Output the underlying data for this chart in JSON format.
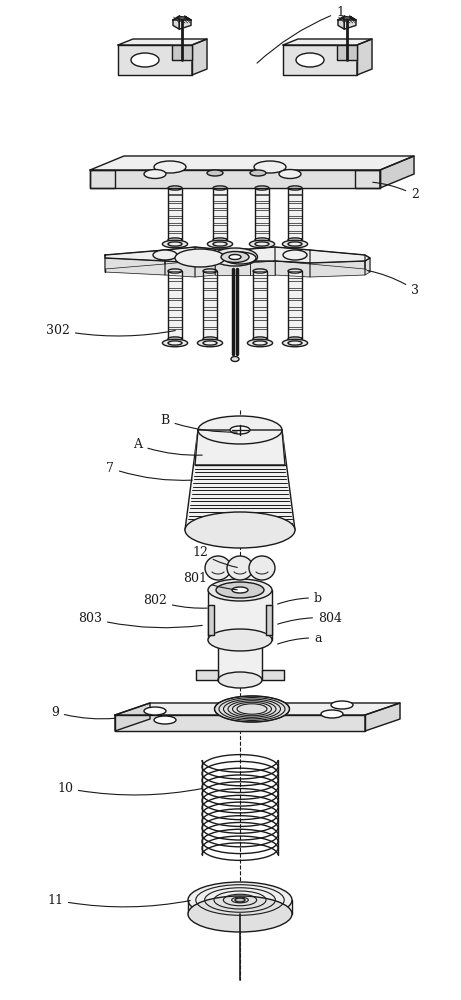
{
  "bg_color": "#ffffff",
  "lc": "#1a1a1a",
  "lw": 1.0,
  "fig_w": 4.61,
  "fig_h": 10.0,
  "dpi": 100,
  "xlim": [
    0,
    461
  ],
  "ylim": [
    0,
    1000
  ]
}
